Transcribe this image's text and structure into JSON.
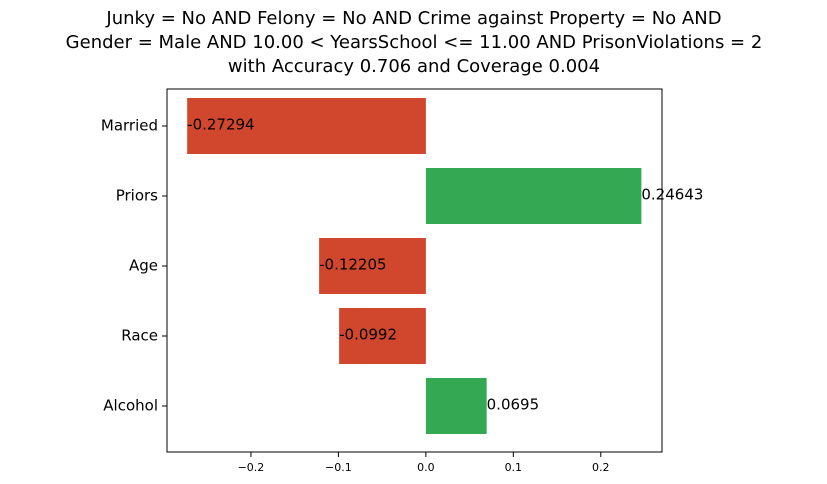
{
  "chart_data": {
    "type": "bar",
    "orientation": "horizontal",
    "title_lines": [
      "Junky = No AND Felony = No AND Crime against Property = No AND",
      "Gender = Male AND 10.00 < YearsSchool <= 11.00 AND PrisonViolations = 2",
      "with Accuracy 0.706 and Coverage 0.004"
    ],
    "categories": [
      "Married",
      "Priors",
      "Age",
      "Race",
      "Alcohol"
    ],
    "values": [
      -0.27294,
      0.24643,
      -0.12205,
      -0.0992,
      0.0695
    ],
    "value_labels": [
      "-0.27294",
      "0.24643",
      "-0.12205",
      "-0.0992",
      "0.0695"
    ],
    "xlim": [
      -0.296,
      0.27
    ],
    "xticks": [
      -0.2,
      -0.1,
      0.0,
      0.1,
      0.2
    ],
    "xtick_labels": [
      "−0.2",
      "−0.1",
      "0.0",
      "0.1",
      "0.2"
    ],
    "xlabel": "",
    "ylabel": "",
    "grid": false,
    "colors": {
      "negative": "#d0472d",
      "positive": "#34a853"
    }
  }
}
